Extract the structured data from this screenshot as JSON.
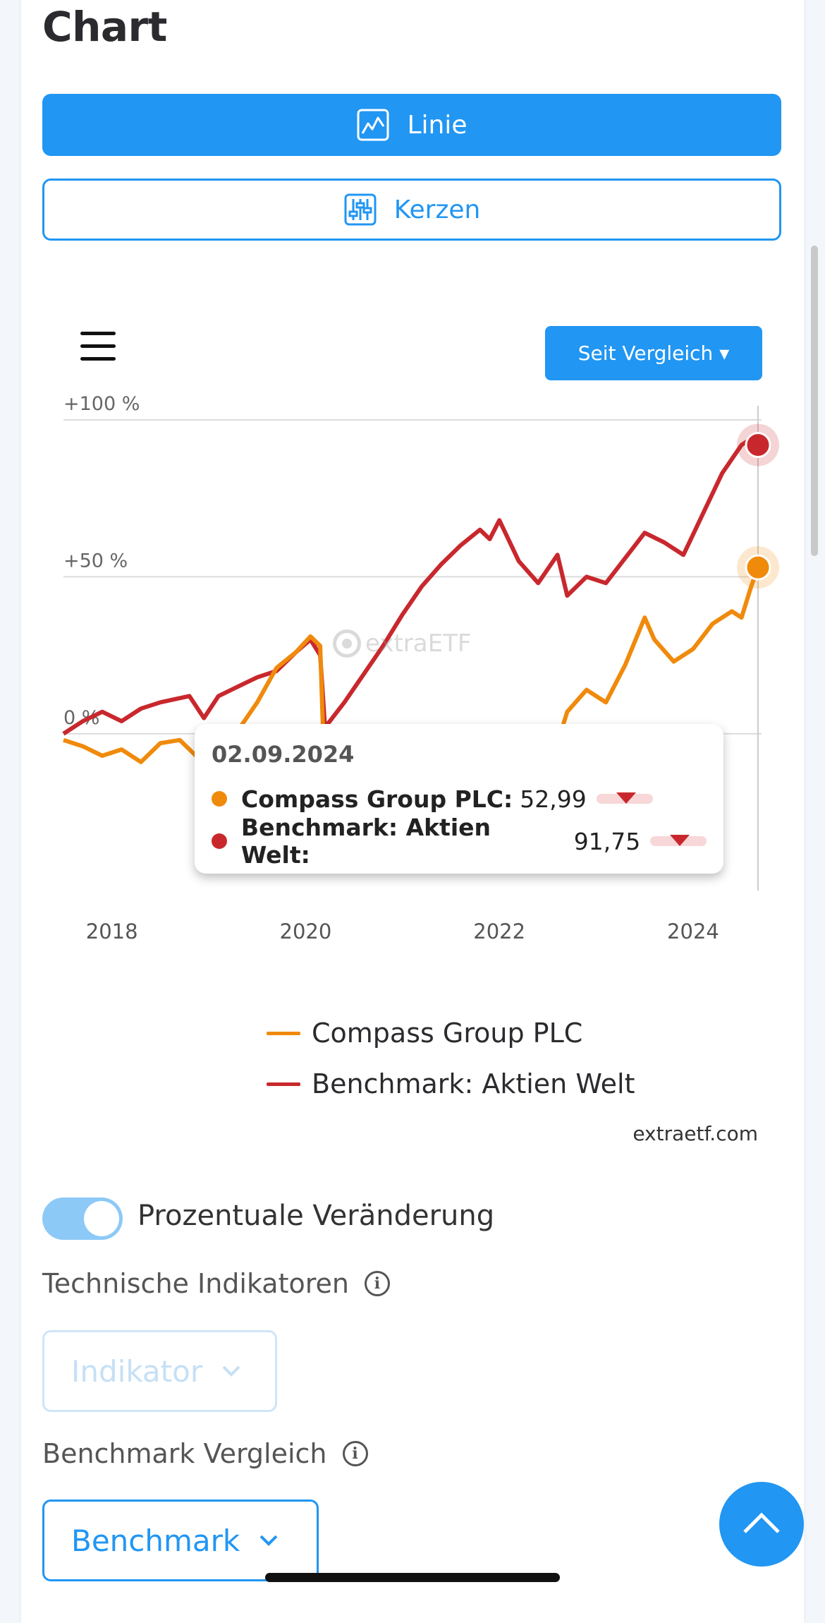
{
  "page": {
    "title": "Chart"
  },
  "chart_type_buttons": {
    "line_label": "Linie",
    "candle_label": "Kerzen"
  },
  "range_selector": {
    "label": "Seit Vergleich ▾"
  },
  "watermark": "extraETF",
  "credits": "extraetf.com",
  "tooltip": {
    "date": "02.09.2024",
    "rows": [
      {
        "name": "Compass Group PLC:",
        "value": "52,99",
        "color": "#f08a0b"
      },
      {
        "name": "Benchmark: Aktien Welt:",
        "value": "91,75",
        "color": "#c8282d"
      }
    ]
  },
  "chart_data": {
    "type": "line",
    "title": "",
    "xlabel": "",
    "ylabel": "",
    "x_tick_labels": [
      "2018",
      "2020",
      "2022",
      "2024"
    ],
    "y_tick_labels": [
      "+100 %",
      "+50 %",
      "0 %"
    ],
    "xlim": [
      2017.5,
      2024.67
    ],
    "ylim": [
      -45,
      100
    ],
    "grid": true,
    "legend_position": "bottom",
    "series": [
      {
        "name": "Compass Group PLC",
        "color": "#f08a0b",
        "x": [
          2017.5,
          2017.7,
          2017.9,
          2018.1,
          2018.3,
          2018.5,
          2018.7,
          2018.9,
          2019.1,
          2019.3,
          2019.5,
          2019.7,
          2019.9,
          2020.05,
          2020.15,
          2020.2,
          2020.4,
          2020.7,
          2021.0,
          2021.3,
          2021.6,
          2021.9,
          2022.1,
          2022.3,
          2022.5,
          2022.6,
          2022.7,
          2022.9,
          2023.1,
          2023.3,
          2023.5,
          2023.6,
          2023.8,
          2024.0,
          2024.2,
          2024.4,
          2024.5,
          2024.6,
          2024.67
        ],
        "values": [
          -2,
          -4,
          -7,
          -5,
          -9,
          -3,
          -2,
          -8,
          -3,
          1,
          10,
          21,
          26,
          31,
          28,
          -18,
          -30,
          -32,
          -28,
          -22,
          -18,
          -12,
          -14,
          -6,
          2,
          -3,
          7,
          14,
          10,
          22,
          37,
          30,
          23,
          27,
          35,
          39,
          37,
          47,
          53
        ]
      },
      {
        "name": "Benchmark: Aktien Welt",
        "color": "#c8282d",
        "x": [
          2017.5,
          2017.7,
          2017.9,
          2018.1,
          2018.3,
          2018.5,
          2018.8,
          2018.95,
          2019.1,
          2019.3,
          2019.5,
          2019.7,
          2019.9,
          2020.05,
          2020.15,
          2020.2,
          2020.4,
          2020.6,
          2020.8,
          2021.0,
          2021.2,
          2021.4,
          2021.6,
          2021.8,
          2021.9,
          2022.0,
          2022.2,
          2022.4,
          2022.6,
          2022.7,
          2022.9,
          2023.1,
          2023.3,
          2023.5,
          2023.7,
          2023.9,
          2024.1,
          2024.3,
          2024.5,
          2024.6,
          2024.67
        ],
        "values": [
          0,
          4,
          7,
          4,
          8,
          10,
          12,
          5,
          12,
          15,
          18,
          20,
          26,
          30,
          25,
          2,
          10,
          19,
          28,
          38,
          47,
          54,
          60,
          65,
          62,
          68,
          55,
          48,
          57,
          44,
          50,
          48,
          56,
          64,
          61,
          57,
          70,
          83,
          92,
          94,
          92
        ]
      }
    ]
  }
}
